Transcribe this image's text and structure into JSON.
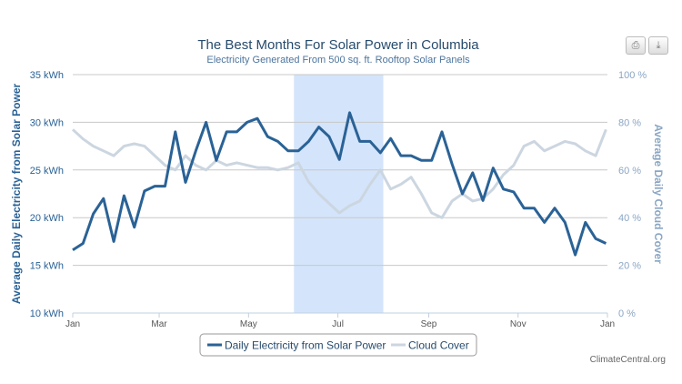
{
  "title": "The Best Months For Solar Power in Columbia",
  "subtitle": "Electricity Generated From 500 sq. ft. Rooftop Solar Panels",
  "credit": "ClimateCentral.org",
  "toolbar": {
    "print_icon": "printer-icon",
    "export_icon": "download-icon"
  },
  "colors": {
    "solar": "#2a6296",
    "cloud": "#ccd6e0",
    "highlight": "#d4e4fb",
    "left_axis": "#2a6296",
    "right_axis": "#8aa6c4",
    "title": "#274b6d",
    "subtitle": "#4d759e"
  },
  "chart_data": {
    "type": "line",
    "title": "The Best Months For Solar Power in Columbia",
    "subtitle": "Electricity Generated From 500 sq. ft. Rooftop Solar Panels",
    "xlabel": "",
    "x_ticks": [
      "Jan",
      "Mar",
      "May",
      "Jul",
      "Sep",
      "Nov",
      "Jan"
    ],
    "y_left": {
      "label": "Average Daily Electricity from Solar Power",
      "ticks": [
        "10 kWh",
        "15 kWh",
        "20 kWh",
        "25 kWh",
        "30 kWh",
        "35 kWh"
      ],
      "range": [
        10,
        35
      ],
      "unit": "kWh"
    },
    "y_right": {
      "label": "Average Daily Cloud Cover",
      "ticks": [
        "0 %",
        "20 %",
        "40 %",
        "60 %",
        "80 %",
        "100 %"
      ],
      "range": [
        0,
        100
      ],
      "unit": "%"
    },
    "grid": true,
    "legend_placement": "bottom",
    "highlight_band": {
      "from": "Jun 1",
      "to": "Aug 1"
    },
    "x_dates": [
      "Jan 1",
      "Jan 8",
      "Jan 15",
      "Jan 22",
      "Jan 29",
      "Feb 5",
      "Feb 12",
      "Feb 19",
      "Feb 26",
      "Mar 5",
      "Mar 12",
      "Mar 19",
      "Mar 26",
      "Apr 2",
      "Apr 9",
      "Apr 16",
      "Apr 23",
      "Apr 30",
      "May 7",
      "May 14",
      "May 21",
      "May 28",
      "Jun 4",
      "Jun 11",
      "Jun 18",
      "Jun 25",
      "Jul 2",
      "Jul 9",
      "Jul 16",
      "Jul 23",
      "Jul 30",
      "Aug 6",
      "Aug 13",
      "Aug 20",
      "Aug 27",
      "Sep 3",
      "Sep 10",
      "Sep 17",
      "Sep 24",
      "Oct 1",
      "Oct 8",
      "Oct 15",
      "Oct 22",
      "Oct 29",
      "Nov 5",
      "Nov 12",
      "Nov 19",
      "Nov 26",
      "Dec 3",
      "Dec 10",
      "Dec 17",
      "Dec 24",
      "Dec 31"
    ],
    "series": [
      {
        "name": "Daily Electricity from Solar Power",
        "axis": "left",
        "values": [
          16.6,
          17.3,
          20.4,
          22,
          17.5,
          22.3,
          19,
          22.8,
          23.3,
          23.3,
          29,
          23.7,
          27,
          30,
          26,
          29,
          29,
          30,
          30.4,
          28.5,
          28,
          27,
          27,
          28,
          29.5,
          28.5,
          26.1,
          31,
          28,
          28,
          26.8,
          28.3,
          26.5,
          26.5,
          26,
          26,
          29,
          25.6,
          22.5,
          24.7,
          21.8,
          25.2,
          23,
          22.7,
          21,
          21,
          19.5,
          21,
          19.5,
          16.1,
          19.5,
          17.8,
          17.3
        ]
      },
      {
        "name": "Cloud Cover",
        "axis": "right",
        "values": [
          77,
          73,
          70,
          68,
          66,
          70,
          71,
          70,
          66,
          62,
          60,
          66,
          62,
          60,
          64,
          62,
          63,
          62,
          61,
          61,
          60,
          61,
          63,
          55,
          50,
          46,
          42,
          45,
          47,
          54,
          60,
          52,
          54,
          57,
          50,
          42,
          40,
          47,
          50,
          47,
          48,
          52,
          58,
          62,
          70,
          72,
          68,
          70,
          72,
          71,
          68,
          66,
          77
        ]
      }
    ]
  }
}
